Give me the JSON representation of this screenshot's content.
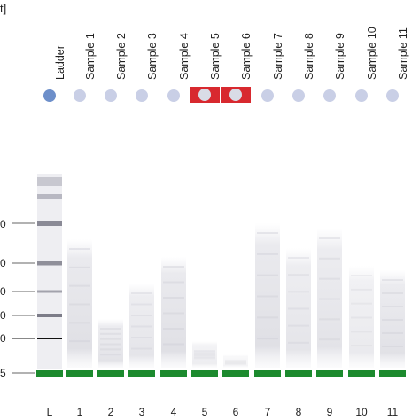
{
  "header": {
    "corner_text": "t]"
  },
  "lanes": [
    {
      "id": "L",
      "label": "Ladder",
      "number": "L",
      "flagged": false,
      "ladder": true
    },
    {
      "id": "1",
      "label": "Sample 1",
      "number": "1",
      "flagged": false
    },
    {
      "id": "2",
      "label": "Sample 2",
      "number": "2",
      "flagged": false
    },
    {
      "id": "3",
      "label": "Sample 3",
      "number": "3",
      "flagged": false
    },
    {
      "id": "4",
      "label": "Sample 4",
      "number": "4",
      "flagged": false
    },
    {
      "id": "5",
      "label": "Sample 5",
      "number": "5",
      "flagged": true
    },
    {
      "id": "6",
      "label": "Sample 6",
      "number": "6",
      "flagged": true
    },
    {
      "id": "7",
      "label": "Sample 7",
      "number": "7",
      "flagged": false
    },
    {
      "id": "8",
      "label": "Sample 8",
      "number": "8",
      "flagged": false
    },
    {
      "id": "9",
      "label": "Sample 9",
      "number": "9",
      "flagged": false
    },
    {
      "id": "10",
      "label": "Sample 10",
      "number": "10",
      "flagged": false
    },
    {
      "id": "11",
      "label": "Sample 11",
      "number": "11",
      "flagged": false
    }
  ],
  "size_axis_labels": [
    "0",
    "0",
    "0",
    "0",
    "0",
    "5"
  ],
  "colors": {
    "ladder_dot": "#6d8fca",
    "sample_dot": "#c9cfe6",
    "flag": "#d8292f",
    "marker_band": "#1c8a2e"
  }
}
